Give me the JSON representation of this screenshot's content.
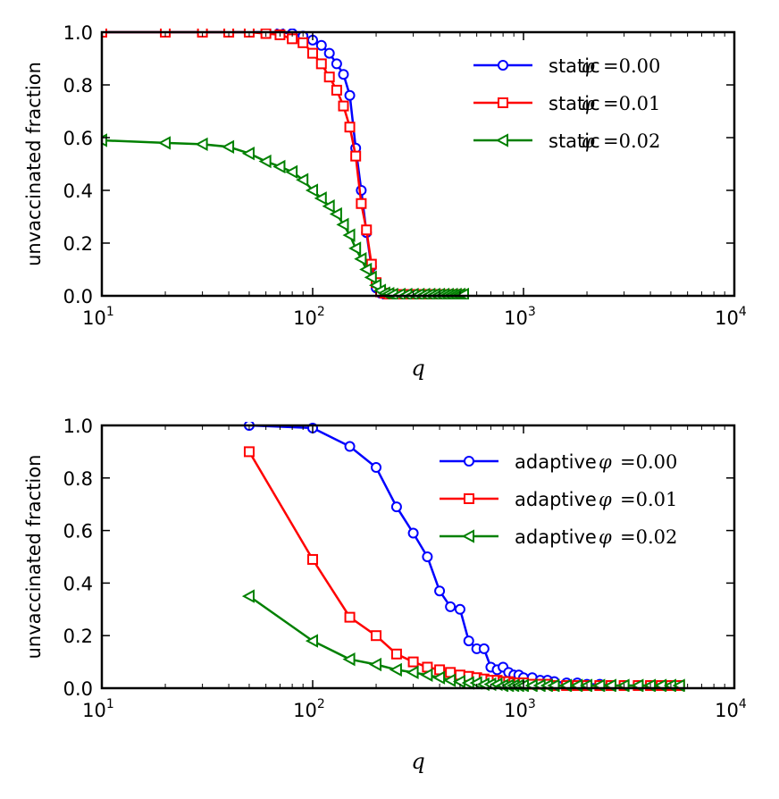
{
  "chart_data": [
    {
      "type": "line",
      "xscale": "log",
      "xlim": [
        10,
        10000
      ],
      "ylim": [
        0.0,
        1.0
      ],
      "xlabel": "q",
      "ylabel": "unvaccinated fraction",
      "xticks": [
        {
          "base": "10",
          "exp": "1"
        },
        {
          "base": "10",
          "exp": "2"
        },
        {
          "base": "10",
          "exp": "3"
        },
        {
          "base": "10",
          "exp": "4"
        }
      ],
      "yticks": [
        "0.0",
        "0.2",
        "0.4",
        "0.6",
        "0.8",
        "1.0"
      ],
      "legend_position": "top-right",
      "series": [
        {
          "name": "static φ =0.00",
          "legend_text": "static",
          "legend_phi": "φ",
          "legend_value": "=0.00",
          "color": "#0000ff",
          "marker": "circle",
          "x": [
            10,
            20,
            30,
            40,
            50,
            60,
            70,
            80,
            90,
            100,
            110,
            120,
            130,
            140,
            150,
            160,
            170,
            180,
            190,
            200,
            210,
            220,
            230,
            240,
            260,
            280,
            300,
            320,
            340,
            360,
            380,
            400,
            420,
            440,
            460,
            480,
            500,
            520
          ],
          "y": [
            1.0,
            1.0,
            1.0,
            1.0,
            1.0,
            1.0,
            1.0,
            0.995,
            0.985,
            0.97,
            0.95,
            0.92,
            0.88,
            0.84,
            0.76,
            0.56,
            0.4,
            0.24,
            0.11,
            0.03,
            0.01,
            0.005,
            0.005,
            0.005,
            0.005,
            0.005,
            0.005,
            0.005,
            0.005,
            0.005,
            0.005,
            0.005,
            0.005,
            0.005,
            0.005,
            0.005,
            0.005,
            0.005
          ]
        },
        {
          "name": "static φ =0.01",
          "legend_text": "static",
          "legend_phi": "φ",
          "legend_value": "=0.01",
          "color": "#ff0000",
          "marker": "square",
          "x": [
            10,
            20,
            30,
            40,
            50,
            60,
            70,
            80,
            90,
            100,
            110,
            120,
            130,
            140,
            150,
            160,
            170,
            180,
            190,
            200,
            210,
            220,
            230,
            240,
            260,
            280,
            300,
            320,
            340,
            360,
            380,
            400,
            420,
            440,
            460,
            480,
            500,
            520
          ],
          "y": [
            1.0,
            1.0,
            1.0,
            1.0,
            1.0,
            0.995,
            0.99,
            0.975,
            0.96,
            0.92,
            0.88,
            0.83,
            0.78,
            0.72,
            0.64,
            0.53,
            0.35,
            0.25,
            0.12,
            0.05,
            0.015,
            0.01,
            0.005,
            0.005,
            0.005,
            0.005,
            0.005,
            0.005,
            0.005,
            0.005,
            0.005,
            0.005,
            0.005,
            0.005,
            0.005,
            0.005,
            0.005,
            0.005
          ]
        },
        {
          "name": "static φ =0.02",
          "legend_text": "static",
          "legend_phi": "φ",
          "legend_value": "=0.02",
          "color": "#008000",
          "marker": "triangle-left",
          "x": [
            10,
            20,
            30,
            40,
            50,
            60,
            70,
            80,
            90,
            100,
            110,
            120,
            130,
            140,
            150,
            160,
            170,
            180,
            190,
            200,
            210,
            220,
            230,
            240,
            260,
            280,
            300,
            320,
            340,
            360,
            380,
            400,
            420,
            440,
            460,
            480,
            500,
            520
          ],
          "y": [
            0.59,
            0.58,
            0.575,
            0.565,
            0.54,
            0.51,
            0.49,
            0.47,
            0.44,
            0.4,
            0.37,
            0.34,
            0.31,
            0.27,
            0.23,
            0.18,
            0.14,
            0.1,
            0.07,
            0.04,
            0.02,
            0.01,
            0.008,
            0.005,
            0.005,
            0.005,
            0.005,
            0.005,
            0.005,
            0.005,
            0.005,
            0.005,
            0.005,
            0.005,
            0.005,
            0.005,
            0.005,
            0.005
          ]
        }
      ]
    },
    {
      "type": "line",
      "xscale": "log",
      "xlim": [
        10,
        10000
      ],
      "ylim": [
        0.0,
        1.0
      ],
      "xlabel": "q",
      "ylabel": "unvaccinated fraction",
      "xticks": [
        {
          "base": "10",
          "exp": "1"
        },
        {
          "base": "10",
          "exp": "2"
        },
        {
          "base": "10",
          "exp": "3"
        },
        {
          "base": "10",
          "exp": "4"
        }
      ],
      "yticks": [
        "0.0",
        "0.2",
        "0.4",
        "0.6",
        "0.8",
        "1.0"
      ],
      "legend_position": "top-right",
      "series": [
        {
          "name": "adaptive φ =0.00",
          "legend_text": "adaptive",
          "legend_phi": "φ",
          "legend_value": "=0.00",
          "color": "#0000ff",
          "marker": "circle",
          "x": [
            50,
            100,
            150,
            200,
            250,
            300,
            350,
            400,
            450,
            500,
            550,
            600,
            650,
            700,
            750,
            800,
            850,
            900,
            950,
            1000,
            1100,
            1200,
            1300,
            1400,
            1600,
            1800,
            2000,
            2300,
            2600,
            3000,
            3500,
            4000,
            4500,
            5000,
            5500
          ],
          "y": [
            1.0,
            0.99,
            0.92,
            0.84,
            0.69,
            0.59,
            0.5,
            0.37,
            0.31,
            0.3,
            0.18,
            0.15,
            0.15,
            0.08,
            0.07,
            0.08,
            0.06,
            0.05,
            0.05,
            0.04,
            0.04,
            0.03,
            0.03,
            0.025,
            0.02,
            0.02,
            0.015,
            0.015,
            0.01,
            0.01,
            0.01,
            0.01,
            0.01,
            0.01,
            0.01
          ]
        },
        {
          "name": "adaptive φ =0.01",
          "legend_text": "adaptive",
          "legend_phi": "φ",
          "legend_value": "=0.01",
          "color": "#ff0000",
          "marker": "square",
          "x": [
            50,
            100,
            150,
            200,
            250,
            300,
            350,
            400,
            450,
            500,
            550,
            600,
            650,
            700,
            750,
            800,
            850,
            900,
            950,
            1000,
            1100,
            1200,
            1300,
            1400,
            1600,
            1800,
            2000,
            2300,
            2600,
            3000,
            3500,
            4000,
            4500,
            5000,
            5500
          ],
          "y": [
            0.9,
            0.49,
            0.27,
            0.2,
            0.13,
            0.1,
            0.08,
            0.07,
            0.06,
            0.05,
            0.045,
            0.04,
            0.035,
            0.03,
            0.03,
            0.025,
            0.025,
            0.02,
            0.02,
            0.02,
            0.015,
            0.015,
            0.015,
            0.01,
            0.01,
            0.01,
            0.01,
            0.01,
            0.01,
            0.01,
            0.01,
            0.01,
            0.01,
            0.01,
            0.01
          ]
        },
        {
          "name": "adaptive φ =0.02",
          "legend_text": "adaptive",
          "legend_phi": "φ",
          "legend_value": "=0.02",
          "color": "#008000",
          "marker": "triangle-left",
          "x": [
            50,
            100,
            150,
            200,
            250,
            300,
            350,
            400,
            450,
            500,
            550,
            600,
            650,
            700,
            750,
            800,
            850,
            900,
            950,
            1000,
            1100,
            1200,
            1300,
            1400,
            1600,
            1800,
            2000,
            2300,
            2600,
            3000,
            3500,
            4000,
            4500,
            5000,
            5500
          ],
          "y": [
            0.35,
            0.18,
            0.11,
            0.09,
            0.07,
            0.06,
            0.05,
            0.04,
            0.03,
            0.025,
            0.02,
            0.02,
            0.015,
            0.015,
            0.015,
            0.01,
            0.01,
            0.01,
            0.01,
            0.01,
            0.01,
            0.01,
            0.01,
            0.01,
            0.01,
            0.01,
            0.01,
            0.01,
            0.01,
            0.01,
            0.01,
            0.01,
            0.01,
            0.01,
            0.01
          ]
        }
      ]
    }
  ]
}
